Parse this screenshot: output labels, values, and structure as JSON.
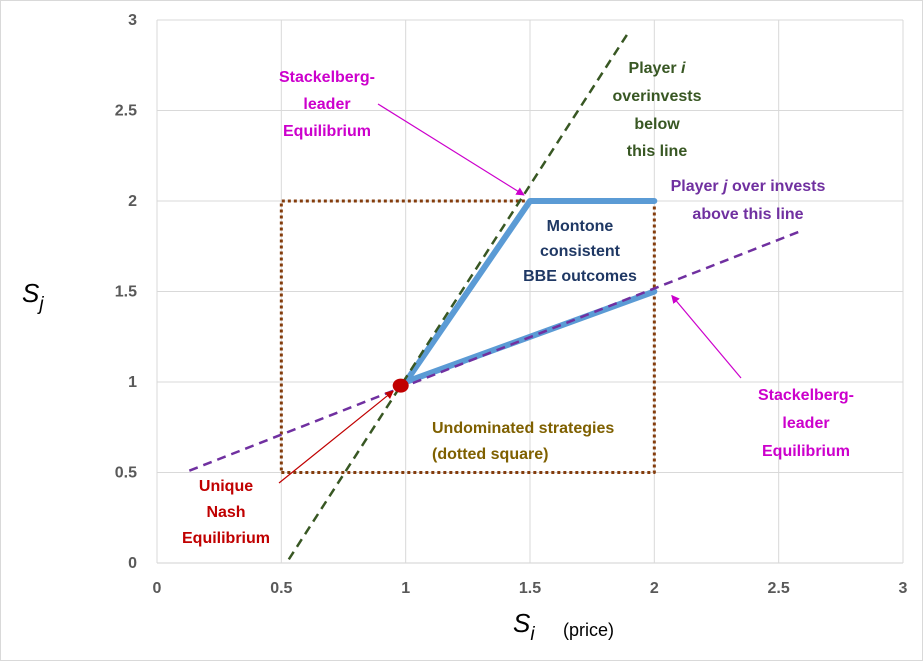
{
  "chart_data": {
    "type": "line",
    "xlabel_symbol": "S",
    "xlabel_subscript": "i",
    "xlabel_suffix": "(price)",
    "ylabel_symbol": "S",
    "ylabel_subscript": "j",
    "xlim": [
      0,
      3
    ],
    "ylim": [
      0,
      3
    ],
    "xticks": [
      0,
      0.5,
      1,
      1.5,
      2,
      2.5,
      3
    ],
    "yticks": [
      0,
      0.5,
      1,
      1.5,
      2,
      2.5,
      3
    ],
    "xtick_labels": [
      "0",
      "0.5",
      "1",
      "1.5",
      "2",
      "2.5",
      "3"
    ],
    "ytick_labels": [
      "0",
      "0.5",
      "1",
      "1.5",
      "2",
      "2.5",
      "3"
    ],
    "grid": true,
    "series": [
      {
        "style": "dashed",
        "color": "#385723",
        "x": [
          0.53,
          1.9
        ],
        "y": [
          0.02,
          2.94
        ]
      },
      {
        "style": "dashed",
        "color": "#7030a0",
        "x": [
          0.13,
          2.6
        ],
        "y": [
          0.51,
          1.84
        ]
      },
      {
        "style": "dotted",
        "color": "#843c0c",
        "x": [
          0.5,
          2,
          2,
          0.5,
          0.5
        ],
        "y": [
          0.5,
          0.5,
          2,
          2,
          0.5
        ]
      },
      {
        "style": "solid",
        "color": "#5b9bd5",
        "x": [
          1,
          1.5,
          2
        ],
        "y": [
          1,
          2,
          2
        ]
      },
      {
        "style": "solid",
        "color": "#5b9bd5",
        "x": [
          1,
          2
        ],
        "y": [
          1,
          1.5
        ]
      }
    ],
    "points": [
      {
        "x": 0.98,
        "y": 0.98,
        "color": "#c00000"
      }
    ],
    "annotations": {
      "stackelberg_top": {
        "lines": [
          "Stackelberg-",
          "leader",
          "Equilibrium"
        ],
        "color": "#cc00cc"
      },
      "player_i": {
        "lines": [
          "Player i",
          "overinvests",
          "below",
          "this line"
        ],
        "color": "#385723"
      },
      "player_j": {
        "lines": [
          "Player j over invests",
          "above this line"
        ],
        "color": "#7030a0"
      },
      "montone": {
        "lines": [
          "Montone",
          "consistent",
          "BBE  outcomes"
        ],
        "color": "#1f3864"
      },
      "stackelberg_right": {
        "lines": [
          "Stackelberg-",
          "leader",
          "Equilibrium"
        ],
        "color": "#cc00cc"
      },
      "undominated": {
        "lines": [
          "Undominated strategies",
          "(dotted square)"
        ],
        "color": "#7f6000"
      },
      "nash": {
        "lines": [
          "Unique",
          "Nash",
          "Equilibrium"
        ],
        "color": "#c00000"
      }
    }
  }
}
